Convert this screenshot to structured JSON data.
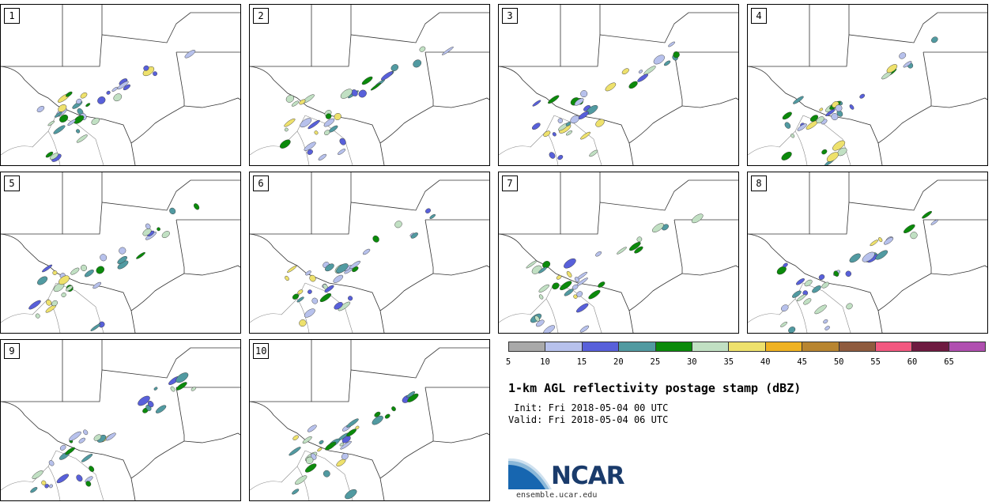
{
  "panels": [
    {
      "label": "1"
    },
    {
      "label": "2"
    },
    {
      "label": "3"
    },
    {
      "label": "4"
    },
    {
      "label": "5"
    },
    {
      "label": "6"
    },
    {
      "label": "7"
    },
    {
      "label": "8"
    },
    {
      "label": "9"
    },
    {
      "label": "10"
    }
  ],
  "colorbar": {
    "colors": [
      "#a9a9a9",
      "#b7c1ec",
      "#5860da",
      "#519aa1",
      "#0b8a0b",
      "#c1e0c3",
      "#eee16c",
      "#efb222",
      "#b88530",
      "#8f5b3e",
      "#f25880",
      "#6e1a40",
      "#b04fb0"
    ],
    "ticks": [
      "5",
      "10",
      "15",
      "20",
      "25",
      "30",
      "35",
      "40",
      "45",
      "50",
      "55",
      "60",
      "65"
    ]
  },
  "title": "1-km AGL reflectivity postage stamp (dBZ)",
  "init": " Init: Fri 2018-05-04 00 UTC",
  "valid": "Valid: Fri 2018-05-04 06 UTC",
  "logo": {
    "text": "NCAR",
    "url": "ensemble.ucar.edu"
  }
}
